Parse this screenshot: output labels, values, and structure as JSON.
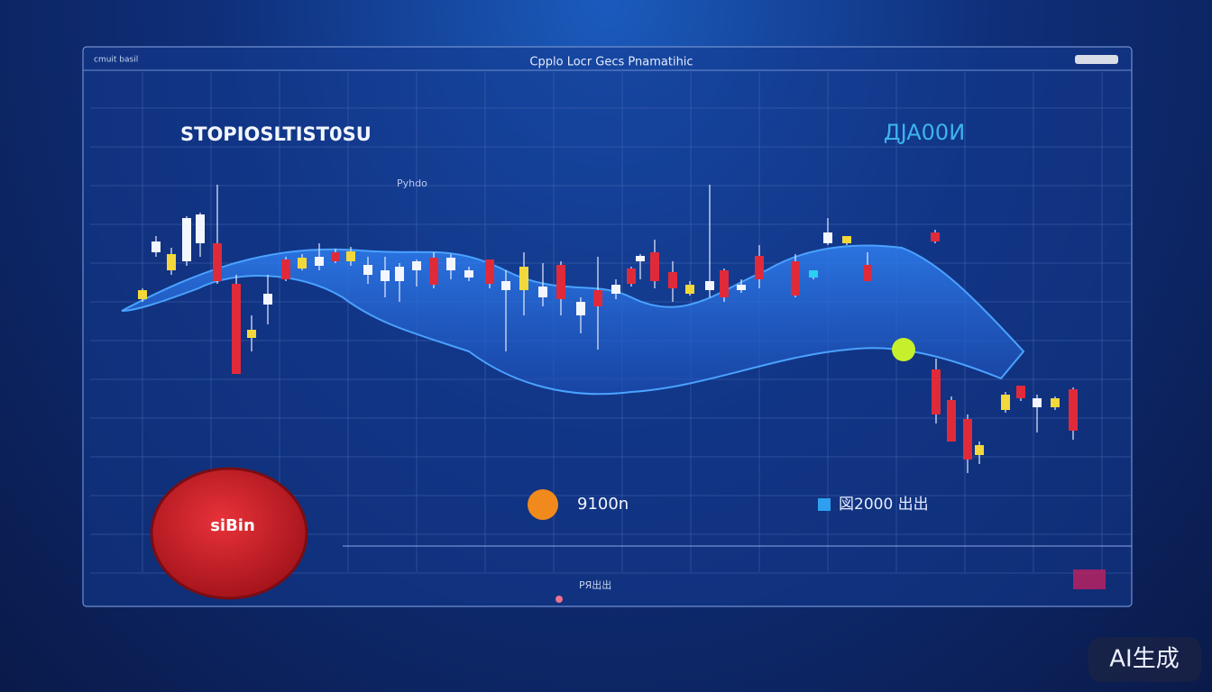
{
  "header": {
    "corner_label": "cmuit basil",
    "title": "Cpplo Locr Gecs Pnamatihic"
  },
  "panel": {
    "heading": "STOPIOSLTIST0SU",
    "price": "ДJA00И",
    "sub_label": "Pyhdo",
    "marker_value": "9100n",
    "stat_label": "図2000 出出",
    "footer_label": "PЯ出出"
  },
  "button": {
    "label": "siBin"
  },
  "watermark": "AI生成"
}
